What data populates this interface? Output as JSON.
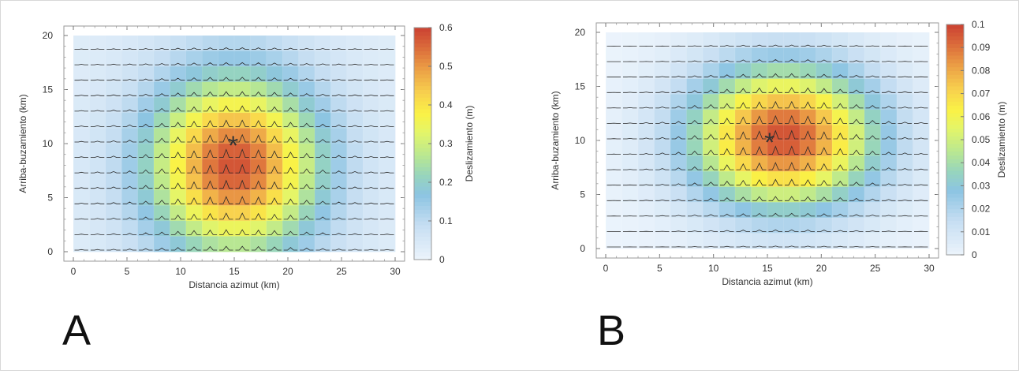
{
  "chart_data": [
    {
      "type": "heatmap",
      "panel_label": "A",
      "xlabel": "Distancia azimut (km)",
      "ylabel": "Arriba-buzamiento (km)",
      "colorbar_label": "Deslizamiento (m)",
      "xlim": [
        0,
        30
      ],
      "ylim": [
        0,
        20
      ],
      "xticks": [
        "0",
        "5",
        "10",
        "15",
        "20",
        "25",
        "30"
      ],
      "yticks": [
        "0",
        "5",
        "10",
        "15",
        "20"
      ],
      "colorbar_ticks": [
        "0",
        "0.1",
        "0.2",
        "0.3",
        "0.4",
        "0.5",
        "0.6"
      ],
      "vmin": 0,
      "vmax": 0.6,
      "grid_cols": 20,
      "grid_rows": 14,
      "hypocenter": {
        "x": 14.9,
        "y": 10.0,
        "symbol": "*"
      },
      "slip_model": {
        "peak_slip": 0.58,
        "center_x": 15.0,
        "center_y": 8.0,
        "sigma_x": 5.5,
        "sigma_y": 5.5,
        "edge_slip_x": 0.06,
        "edge_slip_y": 0.1
      }
    },
    {
      "type": "heatmap",
      "panel_label": "B",
      "xlabel": "Distancia azimut (km)",
      "ylabel": "Arriba-buzamiento (km)",
      "colorbar_label": "Deslizamiento (m)",
      "xlim": [
        0,
        30
      ],
      "ylim": [
        0,
        20
      ],
      "xticks": [
        "0",
        "5",
        "10",
        "15",
        "20",
        "25",
        "30"
      ],
      "yticks": [
        "0",
        "5",
        "10",
        "15",
        "20"
      ],
      "colorbar_ticks": [
        "0",
        "0.01",
        "0.02",
        "0.03",
        "0.04",
        "0.05",
        "0.06",
        "0.07",
        "0.08",
        "0.09",
        "0.1"
      ],
      "vmin": 0,
      "vmax": 0.1,
      "grid_cols": 20,
      "grid_rows": 14,
      "hypocenter": {
        "x": 15.2,
        "y": 10.0,
        "symbol": "*"
      },
      "slip_model": {
        "peak_slip": 0.097,
        "center_x": 16.5,
        "center_y": 10.3,
        "sigma_x": 6.0,
        "sigma_y": 4.6,
        "edge_slip_x": 0.0,
        "edge_slip_y": 0.0
      }
    }
  ]
}
